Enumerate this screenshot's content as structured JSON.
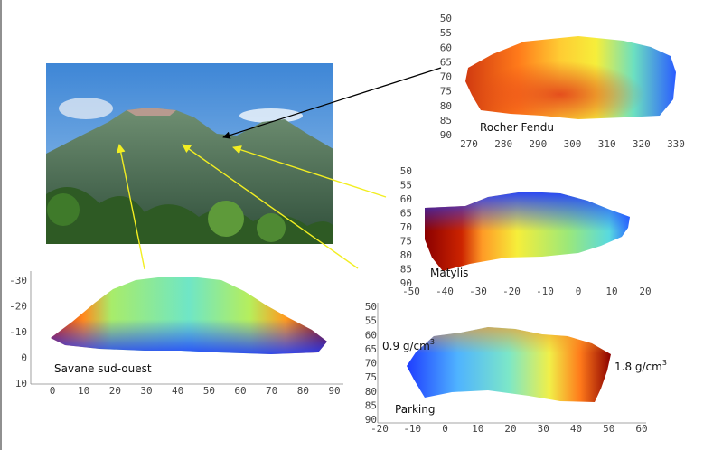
{
  "panels": {
    "rocher": {
      "label": "Rocher Fendu",
      "y_ticks": [
        "50",
        "55",
        "60",
        "65",
        "70",
        "75",
        "80",
        "85",
        "90"
      ],
      "x_ticks": [
        "270",
        "280",
        "290",
        "300",
        "310",
        "320",
        "330"
      ]
    },
    "matylis": {
      "label": "Matylis",
      "y_ticks": [
        "50",
        "55",
        "60",
        "65",
        "70",
        "75",
        "80",
        "85",
        "90"
      ],
      "x_ticks": [
        "-50",
        "-40",
        "-30",
        "-20",
        "-10",
        "0",
        "10",
        "20"
      ]
    },
    "savane": {
      "label": "Savane sud-ouest",
      "y_ticks": [
        "-30",
        "-20",
        "-10",
        "0",
        "10"
      ],
      "x_ticks": [
        "0",
        "10",
        "20",
        "30",
        "40",
        "50",
        "60",
        "70",
        "80",
        "90"
      ]
    },
    "parking": {
      "label": "Parking",
      "y_ticks": [
        "50",
        "55",
        "60",
        "65",
        "70",
        "75",
        "80",
        "85",
        "90"
      ],
      "x_ticks": [
        "-20",
        "-10",
        "0",
        "10",
        "20",
        "30",
        "40",
        "50",
        "60"
      ],
      "density_low": "0.9 g/cm",
      "density_high": "1.8 g/cm",
      "density_exp": "3"
    }
  },
  "colors": {
    "low": "#1f3cff",
    "mid": "#5fe0c0",
    "high": "#8b0000",
    "arrow_main": "#000000",
    "arrow_yellow": "#f2ee22"
  }
}
